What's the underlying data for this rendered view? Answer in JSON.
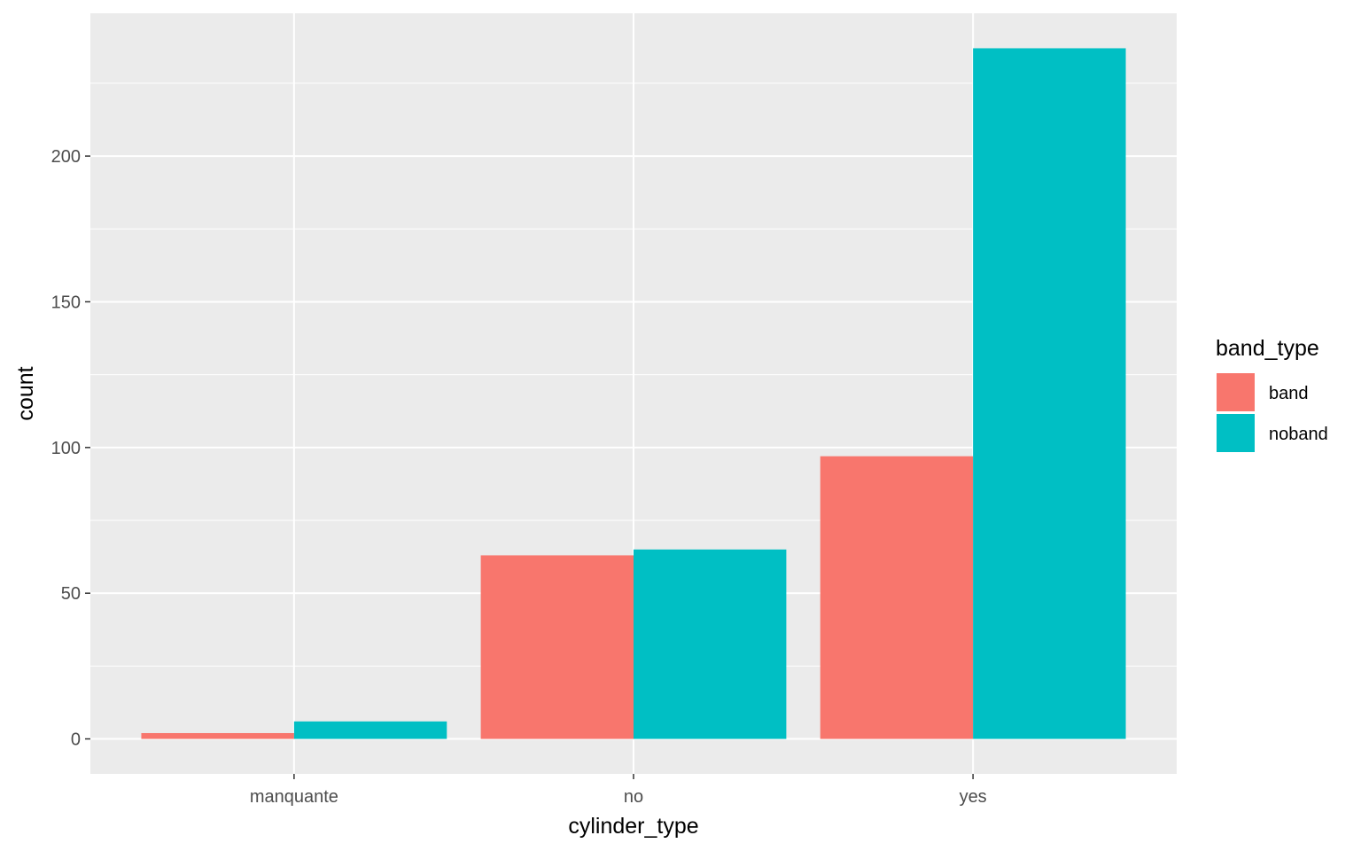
{
  "chart_data": {
    "type": "bar",
    "title": "",
    "xlabel": "cylinder_type",
    "ylabel": "count",
    "categories": [
      "manquante",
      "no",
      "yes"
    ],
    "series": [
      {
        "name": "band",
        "color": "#F8766D",
        "values": [
          2,
          63,
          97
        ]
      },
      {
        "name": "noband",
        "color": "#00BFC4",
        "values": [
          6,
          65,
          237
        ]
      }
    ],
    "ylim": [
      -12,
      249
    ],
    "yticks": [
      0,
      50,
      100,
      150,
      200
    ],
    "ytick_labels": [
      "0",
      "50",
      "100",
      "150",
      "200"
    ],
    "grid": true,
    "legend": {
      "title": "band_type",
      "position": "right"
    },
    "panel_color": "#EBEBEB",
    "grid_color": "#FFFFFF"
  }
}
